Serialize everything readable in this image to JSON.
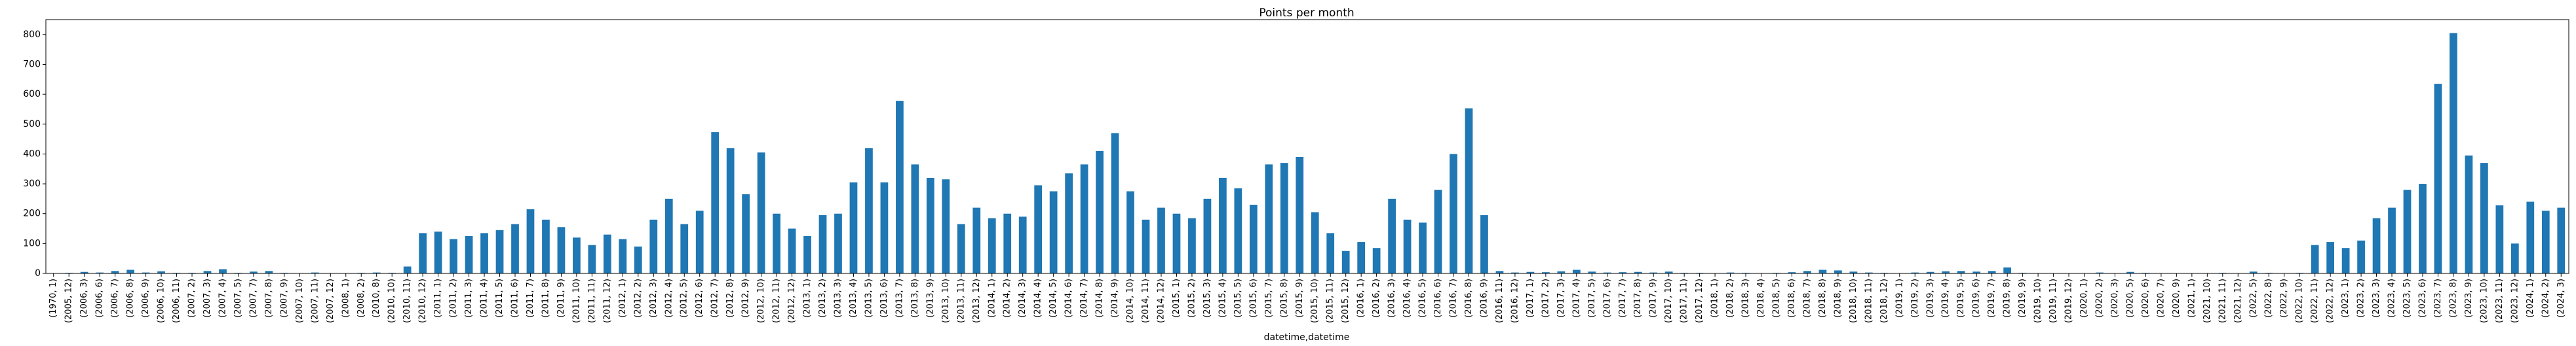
{
  "chart_data": {
    "type": "bar",
    "title": "Points per month",
    "x_label": "datetime,datetime",
    "color": "#1f77b4",
    "categories": [
      "(1970, 1)",
      "(2005, 12)",
      "(2006, 3)",
      "(2006, 6)",
      "(2006, 7)",
      "(2006, 8)",
      "(2006, 9)",
      "(2006, 10)",
      "(2006, 11)",
      "(2007, 2)",
      "(2007, 3)",
      "(2007, 4)",
      "(2007, 5)",
      "(2007, 7)",
      "(2007, 8)",
      "(2007, 9)",
      "(2007, 10)",
      "(2007, 11)",
      "(2007, 12)",
      "(2008, 1)",
      "(2008, 2)",
      "(2010, 8)",
      "(2010, 10)",
      "(2010, 11)",
      "(2010, 12)",
      "(2011, 1)",
      "(2011, 2)",
      "(2011, 3)",
      "(2011, 4)",
      "(2011, 5)",
      "(2011, 6)",
      "(2011, 7)",
      "(2011, 8)",
      "(2011, 9)",
      "(2011, 10)",
      "(2011, 11)",
      "(2011, 12)",
      "(2012, 1)",
      "(2012, 2)",
      "(2012, 3)",
      "(2012, 4)",
      "(2012, 5)",
      "(2012, 6)",
      "(2012, 7)",
      "(2012, 8)",
      "(2012, 9)",
      "(2012, 10)",
      "(2012, 11)",
      "(2012, 12)",
      "(2013, 1)",
      "(2013, 2)",
      "(2013, 3)",
      "(2013, 4)",
      "(2013, 5)",
      "(2013, 6)",
      "(2013, 7)",
      "(2013, 8)",
      "(2013, 9)",
      "(2013, 10)",
      "(2013, 11)",
      "(2013, 12)",
      "(2014, 1)",
      "(2014, 2)",
      "(2014, 3)",
      "(2014, 4)",
      "(2014, 5)",
      "(2014, 6)",
      "(2014, 7)",
      "(2014, 8)",
      "(2014, 9)",
      "(2014, 10)",
      "(2014, 11)",
      "(2014, 12)",
      "(2015, 1)",
      "(2015, 2)",
      "(2015, 3)",
      "(2015, 4)",
      "(2015, 5)",
      "(2015, 6)",
      "(2015, 7)",
      "(2015, 8)",
      "(2015, 9)",
      "(2015, 10)",
      "(2015, 11)",
      "(2015, 12)",
      "(2016, 1)",
      "(2016, 2)",
      "(2016, 3)",
      "(2016, 4)",
      "(2016, 5)",
      "(2016, 6)",
      "(2016, 7)",
      "(2016, 8)",
      "(2016, 9)",
      "(2016, 11)",
      "(2016, 12)",
      "(2017, 1)",
      "(2017, 2)",
      "(2017, 3)",
      "(2017, 4)",
      "(2017, 5)",
      "(2017, 6)",
      "(2017, 7)",
      "(2017, 8)",
      "(2017, 9)",
      "(2017, 10)",
      "(2017, 11)",
      "(2017, 12)",
      "(2018, 1)",
      "(2018, 2)",
      "(2018, 3)",
      "(2018, 4)",
      "(2018, 5)",
      "(2018, 6)",
      "(2018, 7)",
      "(2018, 8)",
      "(2018, 9)",
      "(2018, 10)",
      "(2018, 11)",
      "(2018, 12)",
      "(2019, 1)",
      "(2019, 2)",
      "(2019, 3)",
      "(2019, 4)",
      "(2019, 5)",
      "(2019, 6)",
      "(2019, 7)",
      "(2019, 8)",
      "(2019, 9)",
      "(2019, 10)",
      "(2019, 11)",
      "(2019, 12)",
      "(2020, 1)",
      "(2020, 2)",
      "(2020, 3)",
      "(2020, 5)",
      "(2020, 6)",
      "(2020, 7)",
      "(2020, 9)",
      "(2021, 1)",
      "(2021, 10)",
      "(2021, 11)",
      "(2021, 12)",
      "(2022, 5)",
      "(2022, 8)",
      "(2022, 9)",
      "(2022, 10)",
      "(2022, 11)",
      "(2022, 12)",
      "(2023, 1)",
      "(2023, 2)",
      "(2023, 3)",
      "(2023, 4)",
      "(2023, 5)",
      "(2023, 6)",
      "(2023, 7)",
      "(2023, 8)",
      "(2023, 9)",
      "(2023, 10)",
      "(2023, 11)",
      "(2023, 12)",
      "(2024, 1)",
      "(2024, 2)",
      "(2024, 3)"
    ],
    "values": [
      1,
      2,
      5,
      3,
      8,
      12,
      3,
      7,
      2,
      2,
      8,
      14,
      2,
      6,
      8,
      2,
      1,
      3,
      1,
      1,
      2,
      3,
      2,
      23,
      135,
      140,
      115,
      125,
      135,
      145,
      165,
      215,
      180,
      155,
      120,
      95,
      130,
      115,
      90,
      180,
      250,
      165,
      210,
      473,
      420,
      265,
      405,
      200,
      150,
      125,
      195,
      200,
      305,
      420,
      305,
      578,
      365,
      320,
      315,
      165,
      220,
      185,
      200,
      190,
      295,
      275,
      335,
      365,
      410,
      470,
      275,
      180,
      220,
      200,
      185,
      250,
      320,
      285,
      230,
      365,
      370,
      390,
      205,
      135,
      75,
      105,
      85,
      250,
      180,
      170,
      280,
      400,
      553,
      195,
      8,
      3,
      5,
      4,
      7,
      12,
      6,
      3,
      4,
      5,
      3,
      6,
      2,
      2,
      1,
      3,
      2,
      1,
      2,
      4,
      8,
      12,
      10,
      6,
      3,
      2,
      1,
      3,
      5,
      7,
      8,
      6,
      8,
      20,
      2,
      1,
      1,
      1,
      1,
      3,
      1,
      5,
      2,
      1,
      1,
      1,
      1,
      2,
      1,
      6,
      2,
      1,
      2,
      95,
      105,
      85,
      110,
      185,
      220,
      280,
      300,
      635,
      805,
      395,
      370,
      228,
      100,
      240,
      210,
      220
    ],
    "ylim": [
      0,
      850
    ],
    "yticks": [
      0,
      100,
      200,
      300,
      400,
      500,
      600,
      700,
      800
    ]
  }
}
